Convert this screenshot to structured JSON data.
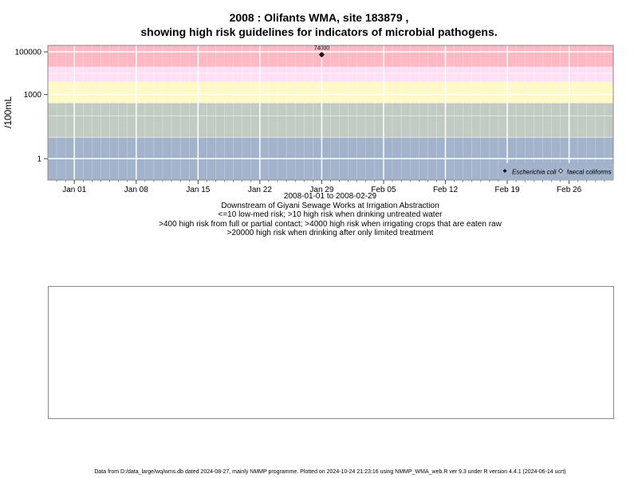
{
  "title_line1": "2008 : Olifants WMA, site 183879 ,",
  "title_line2": "showing high risk guidelines for indicators of microbial pathogens.",
  "colors": {
    "band_low": "#a2b3cb",
    "band_mid": "#c2cbc2",
    "band_yellow": "#fff9c8",
    "band_pink_light": "#fde0f4",
    "band_red": "#ffb9c5",
    "gridline": "#ffffff"
  },
  "chart_data": {
    "type": "scatter",
    "ylabel": "/100mL",
    "yscale": "log",
    "ylim": [
      0.1,
      200000
    ],
    "y_ticks": [
      {
        "value": 1,
        "label": "1"
      },
      {
        "value": 1000,
        "label": "1000"
      },
      {
        "value": 100000,
        "label": "100000"
      }
    ],
    "x_range": [
      "2007-12-29",
      "2008-03-02"
    ],
    "x_ticks": [
      {
        "date": "2008-01-01",
        "label": "Jan 01"
      },
      {
        "date": "2008-01-08",
        "label": "Jan 08"
      },
      {
        "date": "2008-01-15",
        "label": "Jan 15"
      },
      {
        "date": "2008-01-22",
        "label": "Jan 22"
      },
      {
        "date": "2008-01-29",
        "label": "Jan 29"
      },
      {
        "date": "2008-02-05",
        "label": "Feb 05"
      },
      {
        "date": "2008-02-12",
        "label": "Feb 12"
      },
      {
        "date": "2008-02-19",
        "label": "Feb 19"
      },
      {
        "date": "2008-02-26",
        "label": "Feb 26"
      }
    ],
    "risk_bands": [
      {
        "from": 0.1,
        "to": 10,
        "color": "#a2b3cb"
      },
      {
        "from": 10,
        "to": 400,
        "color": "#c2cbc2"
      },
      {
        "from": 400,
        "to": 4000,
        "color": "#fff9c8"
      },
      {
        "from": 4000,
        "to": 20000,
        "color": "#fde0f4"
      },
      {
        "from": 20000,
        "to": 200000,
        "color": "#ffb9c5"
      }
    ],
    "series": [
      {
        "name": "Escherichia coli",
        "marker": "filled-diamond",
        "points": [
          {
            "date": "2008-01-29",
            "value": 74000,
            "label": "74000"
          }
        ]
      },
      {
        "name": "faecal coliforms",
        "marker": "open-diamond",
        "points": []
      }
    ],
    "legend_placement": "bottom-right",
    "grid": true
  },
  "caption": {
    "date_range": "2008-01-01 to 2008-02-29",
    "site_desc": "Downstream of Giyani Sewage Works at Irrigation Abstraction",
    "line1": "<=10 low-med risk; >10 high risk when drinking untreated water",
    "line2": ">400 high risk from full or partial contact; >4000 high risk when irrigating crops that are eaten raw",
    "line3": ">20000 high risk when drinking after only limited treatment"
  },
  "footer": "Data from D:/data_large/wq/wms.db dated 2024-08-27, mainly NMMP programme. Plotted on 2024-10-24 21:23:16 using NMMP_WMA_web.R ver 9.3 under R version 4.4.1 (2024-06-14 ucrt)"
}
